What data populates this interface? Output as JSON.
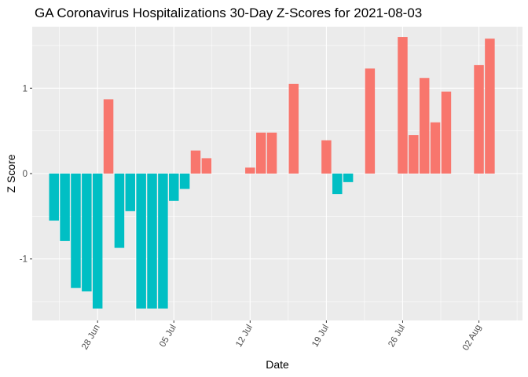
{
  "chart_data": {
    "type": "bar",
    "title": "GA Coronavirus Hospitalizations 30-Day Z-Scores for 2021-08-03",
    "xlabel": "Date",
    "ylabel": "Z Score",
    "ylim": [
      -1.72,
      1.72
    ],
    "y_ticks": [
      {
        "value": -1,
        "label": "-1"
      },
      {
        "value": 0,
        "label": "0"
      },
      {
        "value": 1,
        "label": "1"
      }
    ],
    "x_range": [
      "2021-06-22",
      "2021-08-06"
    ],
    "x_ticks": [
      {
        "date": "2021-06-28",
        "label": "28 Jun"
      },
      {
        "date": "2021-07-05",
        "label": "05 Jul"
      },
      {
        "date": "2021-07-12",
        "label": "12 Jul"
      },
      {
        "date": "2021-07-19",
        "label": "19 Jul"
      },
      {
        "date": "2021-07-26",
        "label": "26 Jul"
      },
      {
        "date": "2021-08-02",
        "label": "02 Aug"
      }
    ],
    "positive_color": "#F8766D",
    "negative_color": "#00BFC4",
    "series": [
      {
        "name": "Z Score",
        "points": [
          {
            "date": "2021-06-24",
            "value": -0.55
          },
          {
            "date": "2021-06-25",
            "value": -0.79
          },
          {
            "date": "2021-06-26",
            "value": -1.34
          },
          {
            "date": "2021-06-27",
            "value": -1.38
          },
          {
            "date": "2021-06-28",
            "value": -1.58
          },
          {
            "date": "2021-06-29",
            "value": 0.87
          },
          {
            "date": "2021-06-30",
            "value": -0.87
          },
          {
            "date": "2021-07-01",
            "value": -0.44
          },
          {
            "date": "2021-07-02",
            "value": -1.58
          },
          {
            "date": "2021-07-03",
            "value": -1.58
          },
          {
            "date": "2021-07-04",
            "value": -1.58
          },
          {
            "date": "2021-07-05",
            "value": -0.32
          },
          {
            "date": "2021-07-06",
            "value": -0.18
          },
          {
            "date": "2021-07-07",
            "value": 0.27
          },
          {
            "date": "2021-07-08",
            "value": 0.18
          },
          {
            "date": "2021-07-12",
            "value": 0.07
          },
          {
            "date": "2021-07-13",
            "value": 0.48
          },
          {
            "date": "2021-07-14",
            "value": 0.48
          },
          {
            "date": "2021-07-16",
            "value": 1.05
          },
          {
            "date": "2021-07-19",
            "value": 0.39
          },
          {
            "date": "2021-07-20",
            "value": -0.24
          },
          {
            "date": "2021-07-21",
            "value": -0.1
          },
          {
            "date": "2021-07-23",
            "value": 1.23
          },
          {
            "date": "2021-07-26",
            "value": 1.6
          },
          {
            "date": "2021-07-27",
            "value": 0.45
          },
          {
            "date": "2021-07-28",
            "value": 1.12
          },
          {
            "date": "2021-07-29",
            "value": 0.6
          },
          {
            "date": "2021-07-30",
            "value": 0.96
          },
          {
            "date": "2021-08-02",
            "value": 1.27
          },
          {
            "date": "2021-08-03",
            "value": 1.58
          }
        ]
      }
    ]
  }
}
